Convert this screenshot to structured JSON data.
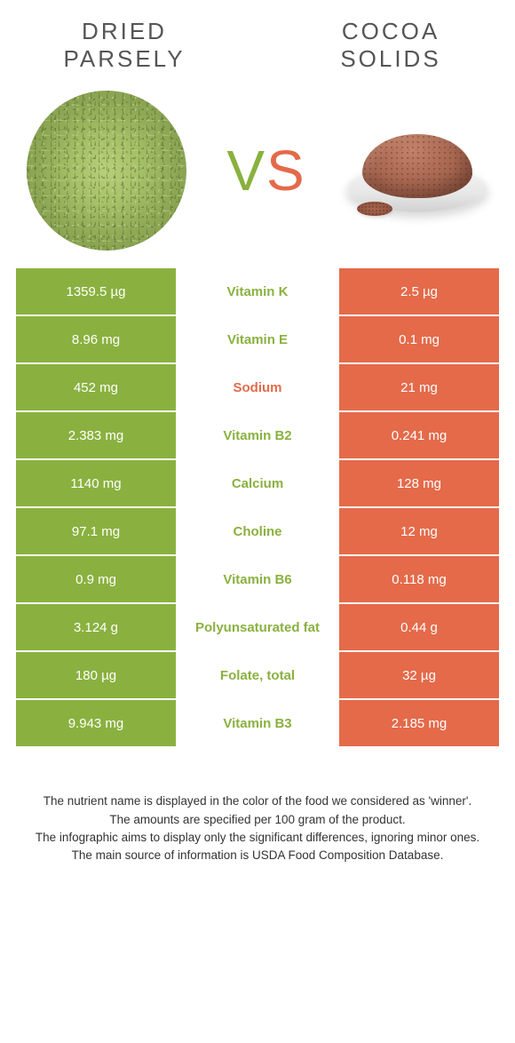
{
  "header": {
    "left_line1": "DRIED",
    "left_line2": "PARSELY",
    "right_line1": "COCOA",
    "right_line2": "SOLIDS"
  },
  "vs": {
    "v": "V",
    "s": "S"
  },
  "colors": {
    "left": "#8ab13f",
    "right": "#e46a4a"
  },
  "rows": [
    {
      "left": "1359.5 µg",
      "name": "Vitamin K",
      "right": "2.5 µg",
      "winner": "left"
    },
    {
      "left": "8.96 mg",
      "name": "Vitamin E",
      "right": "0.1 mg",
      "winner": "left"
    },
    {
      "left": "452 mg",
      "name": "Sodium",
      "right": "21 mg",
      "winner": "right"
    },
    {
      "left": "2.383 mg",
      "name": "Vitamin B2",
      "right": "0.241 mg",
      "winner": "left"
    },
    {
      "left": "1140 mg",
      "name": "Calcium",
      "right": "128 mg",
      "winner": "left"
    },
    {
      "left": "97.1 mg",
      "name": "Choline",
      "right": "12 mg",
      "winner": "left"
    },
    {
      "left": "0.9 mg",
      "name": "Vitamin B6",
      "right": "0.118 mg",
      "winner": "left"
    },
    {
      "left": "3.124 g",
      "name": "Polyunsaturated fat",
      "right": "0.44 g",
      "winner": "left"
    },
    {
      "left": "180 µg",
      "name": "Folate, total",
      "right": "32 µg",
      "winner": "left"
    },
    {
      "left": "9.943 mg",
      "name": "Vitamin B3",
      "right": "2.185 mg",
      "winner": "left"
    }
  ],
  "footer": {
    "l1": "The nutrient name is displayed in the color of the food we considered as 'winner'.",
    "l2": "The amounts are specified per 100 gram of the product.",
    "l3": "The infographic aims to display only the significant differences, ignoring minor ones.",
    "l4": "The main source of information is USDA Food Composition Database."
  }
}
